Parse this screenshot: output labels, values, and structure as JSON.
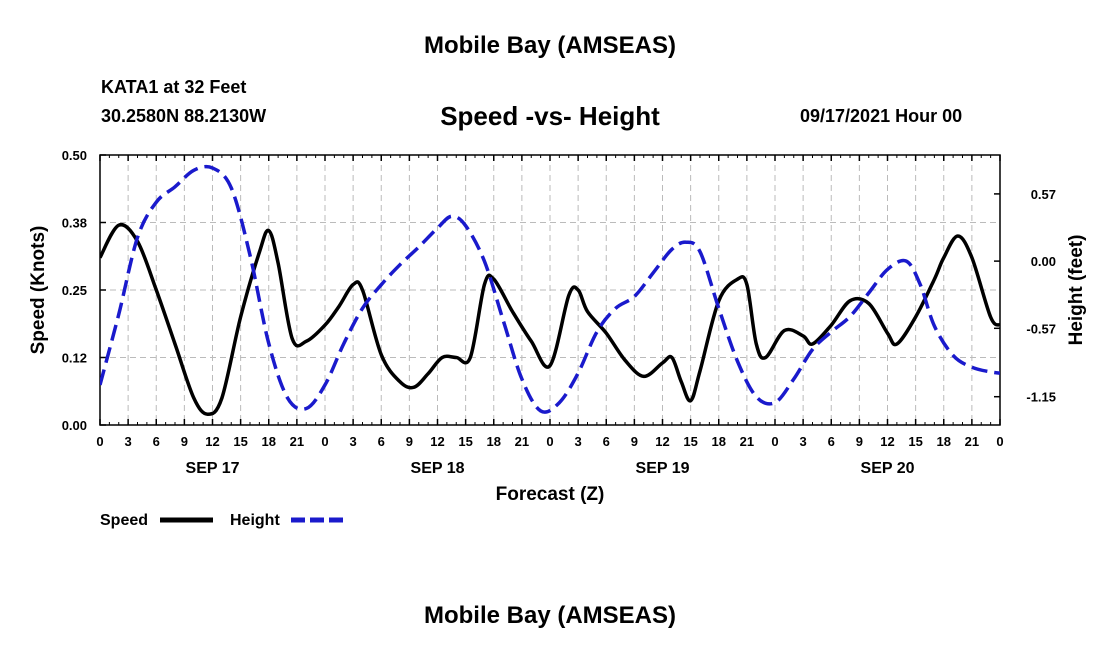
{
  "header": {
    "title": "Mobile Bay (AMSEAS)",
    "station": "KATA1 at 32 Feet",
    "coords": "30.2580N  88.2130W",
    "subtitle": "Speed -vs- Height",
    "datetime": "09/17/2021 Hour 00",
    "footer_title": "Mobile Bay (AMSEAS)"
  },
  "legend": {
    "speed_label": "Speed",
    "height_label": "Height"
  },
  "colors": {
    "speed": "#000000",
    "height": "#1a1acc",
    "grid": "#bbbbbb"
  },
  "chart_data": {
    "type": "line",
    "title": "Speed -vs- Height",
    "xlabel": "Forecast (Z)",
    "ylabel": "Speed (Knots)",
    "y2label": "Height (feet)",
    "xlim": [
      0,
      96
    ],
    "ylim": [
      0,
      0.5
    ],
    "y2lim": [
      -1.39,
      0.9
    ],
    "grid": true,
    "yticks": [
      "0.00",
      "0.12",
      "0.25",
      "0.38",
      "0.50"
    ],
    "ytick_values": [
      0,
      0.125,
      0.25,
      0.375,
      0.5
    ],
    "y2ticks": [
      "0.57",
      "0.00",
      "-0.57",
      "-1.15"
    ],
    "y2tick_values": [
      0.57,
      0.0,
      -0.57,
      -1.15
    ],
    "xticks": [
      "0",
      "3",
      "6",
      "9",
      "12",
      "15",
      "18",
      "21",
      "0",
      "3",
      "6",
      "9",
      "12",
      "15",
      "18",
      "21",
      "0",
      "3",
      "6",
      "9",
      "12",
      "15",
      "18",
      "21",
      "0",
      "3",
      "6",
      "9",
      "12",
      "15",
      "18",
      "21",
      "0"
    ],
    "date_labels": [
      {
        "label": "SEP 17",
        "hour": 12
      },
      {
        "label": "SEP 18",
        "hour": 36
      },
      {
        "label": "SEP 19",
        "hour": 60
      },
      {
        "label": "SEP 20",
        "hour": 84
      }
    ],
    "series": [
      {
        "name": "Speed",
        "axis": "left",
        "style": "solid",
        "points": [
          [
            0,
            0.31
          ],
          [
            2,
            0.37
          ],
          [
            4,
            0.34
          ],
          [
            6,
            0.25
          ],
          [
            8,
            0.15
          ],
          [
            10,
            0.05
          ],
          [
            11.5,
            0.02
          ],
          [
            13,
            0.05
          ],
          [
            15,
            0.2
          ],
          [
            17,
            0.32
          ],
          [
            18,
            0.36
          ],
          [
            19,
            0.3
          ],
          [
            20.5,
            0.16
          ],
          [
            22,
            0.155
          ],
          [
            24,
            0.185
          ],
          [
            25.5,
            0.22
          ],
          [
            27,
            0.26
          ],
          [
            28,
            0.25
          ],
          [
            30,
            0.13
          ],
          [
            32,
            0.08
          ],
          [
            33.5,
            0.07
          ],
          [
            35,
            0.095
          ],
          [
            36.5,
            0.125
          ],
          [
            38,
            0.125
          ],
          [
            39.5,
            0.125
          ],
          [
            41,
            0.26
          ],
          [
            42,
            0.27
          ],
          [
            44,
            0.21
          ],
          [
            46,
            0.155
          ],
          [
            48,
            0.11
          ],
          [
            50,
            0.24
          ],
          [
            51,
            0.25
          ],
          [
            52,
            0.21
          ],
          [
            54,
            0.17
          ],
          [
            56,
            0.12
          ],
          [
            58,
            0.09
          ],
          [
            60,
            0.115
          ],
          [
            61,
            0.125
          ],
          [
            62,
            0.08
          ],
          [
            63,
            0.045
          ],
          [
            64,
            0.1
          ],
          [
            66,
            0.23
          ],
          [
            68,
            0.27
          ],
          [
            69,
            0.26
          ],
          [
            70,
            0.15
          ],
          [
            71,
            0.125
          ],
          [
            73,
            0.175
          ],
          [
            75,
            0.165
          ],
          [
            76,
            0.15
          ],
          [
            78,
            0.185
          ],
          [
            80,
            0.23
          ],
          [
            82,
            0.225
          ],
          [
            84,
            0.17
          ],
          [
            85,
            0.15
          ],
          [
            87,
            0.2
          ],
          [
            89,
            0.27
          ],
          [
            90,
            0.31
          ],
          [
            91.5,
            0.35
          ],
          [
            93,
            0.31
          ],
          [
            95,
            0.2
          ],
          [
            96,
            0.185
          ]
        ]
      },
      {
        "name": "Height",
        "axis": "right",
        "style": "dashed",
        "points": [
          [
            0,
            -1.05
          ],
          [
            2,
            -0.45
          ],
          [
            4,
            0.2
          ],
          [
            6,
            0.5
          ],
          [
            8,
            0.63
          ],
          [
            10,
            0.77
          ],
          [
            12,
            0.79
          ],
          [
            14,
            0.62
          ],
          [
            16,
            0.05
          ],
          [
            18,
            -0.7
          ],
          [
            20,
            -1.16
          ],
          [
            22,
            -1.25
          ],
          [
            24,
            -1.05
          ],
          [
            26,
            -0.7
          ],
          [
            28,
            -0.4
          ],
          [
            30,
            -0.2
          ],
          [
            32,
            -0.03
          ],
          [
            34,
            0.12
          ],
          [
            36,
            0.28
          ],
          [
            37.5,
            0.38
          ],
          [
            39,
            0.3
          ],
          [
            41,
            0.0
          ],
          [
            43,
            -0.5
          ],
          [
            45,
            -1.0
          ],
          [
            47,
            -1.27
          ],
          [
            49,
            -1.2
          ],
          [
            51,
            -0.95
          ],
          [
            53,
            -0.6
          ],
          [
            55,
            -0.4
          ],
          [
            57,
            -0.3
          ],
          [
            59,
            -0.1
          ],
          [
            61,
            0.1
          ],
          [
            62.5,
            0.16
          ],
          [
            64,
            0.08
          ],
          [
            66,
            -0.4
          ],
          [
            68,
            -0.85
          ],
          [
            70,
            -1.15
          ],
          [
            72,
            -1.2
          ],
          [
            74,
            -1.0
          ],
          [
            76,
            -0.75
          ],
          [
            78,
            -0.6
          ],
          [
            80,
            -0.47
          ],
          [
            82,
            -0.27
          ],
          [
            84,
            -0.07
          ],
          [
            86,
            0.0
          ],
          [
            87.5,
            -0.2
          ],
          [
            89,
            -0.55
          ],
          [
            91,
            -0.8
          ],
          [
            93,
            -0.9
          ],
          [
            95,
            -0.94
          ],
          [
            96,
            -0.95
          ]
        ]
      }
    ]
  }
}
